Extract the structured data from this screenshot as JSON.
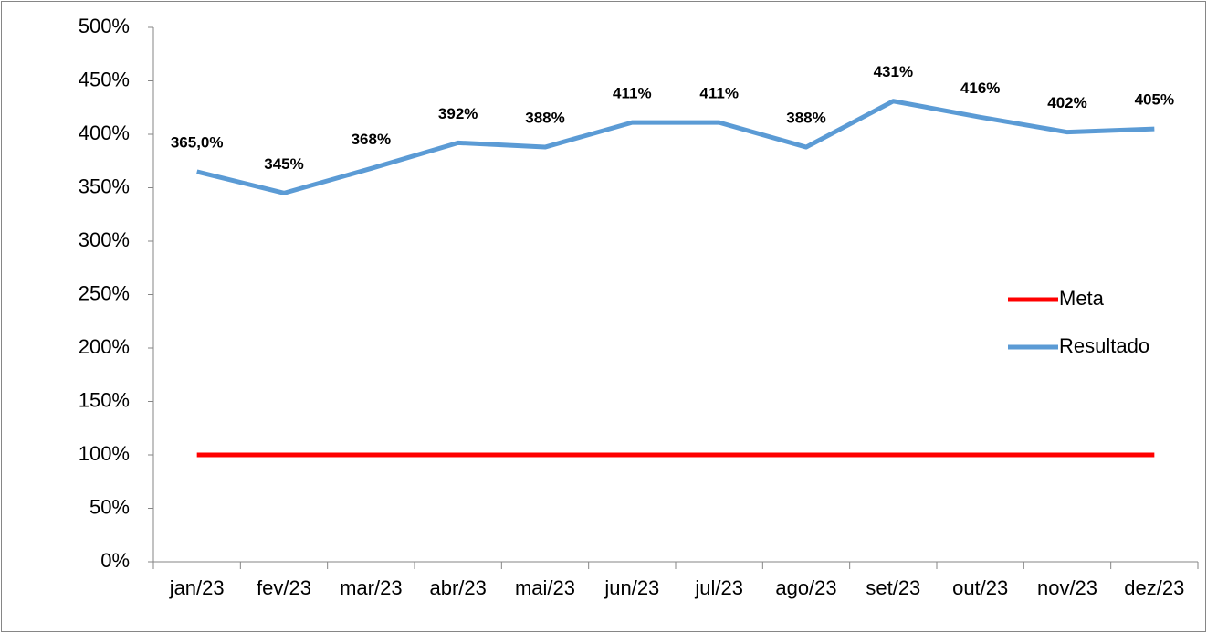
{
  "chart_data": {
    "type": "line",
    "categories": [
      "jan/23",
      "fev/23",
      "mar/23",
      "abr/23",
      "mai/23",
      "jun/23",
      "jul/23",
      "ago/23",
      "set/23",
      "out/23",
      "nov/23",
      "dez/23"
    ],
    "series": [
      {
        "name": "Meta",
        "color": "#ff0000",
        "values": [
          100,
          100,
          100,
          100,
          100,
          100,
          100,
          100,
          100,
          100,
          100,
          100
        ]
      },
      {
        "name": "Resultado",
        "color": "#5b9bd5",
        "values": [
          365,
          345,
          368,
          392,
          388,
          411,
          411,
          388,
          431,
          416,
          402,
          405
        ],
        "value_labels": [
          "365,0%",
          "345%",
          "368%",
          "392%",
          "388%",
          "411%",
          "411%",
          "388%",
          "431%",
          "416%",
          "402%",
          "405%"
        ]
      }
    ],
    "ylim": [
      0,
      500
    ],
    "yticks": [
      {
        "value": 0,
        "label": "0%"
      },
      {
        "value": 50,
        "label": "50%"
      },
      {
        "value": 100,
        "label": "100%"
      },
      {
        "value": 150,
        "label": "150%"
      },
      {
        "value": 200,
        "label": "200%"
      },
      {
        "value": 250,
        "label": "250%"
      },
      {
        "value": 300,
        "label": "300%"
      },
      {
        "value": 350,
        "label": "350%"
      },
      {
        "value": 400,
        "label": "400%"
      },
      {
        "value": 450,
        "label": "450%"
      },
      {
        "value": 500,
        "label": "500%"
      }
    ],
    "grid": false,
    "legend": "right"
  }
}
